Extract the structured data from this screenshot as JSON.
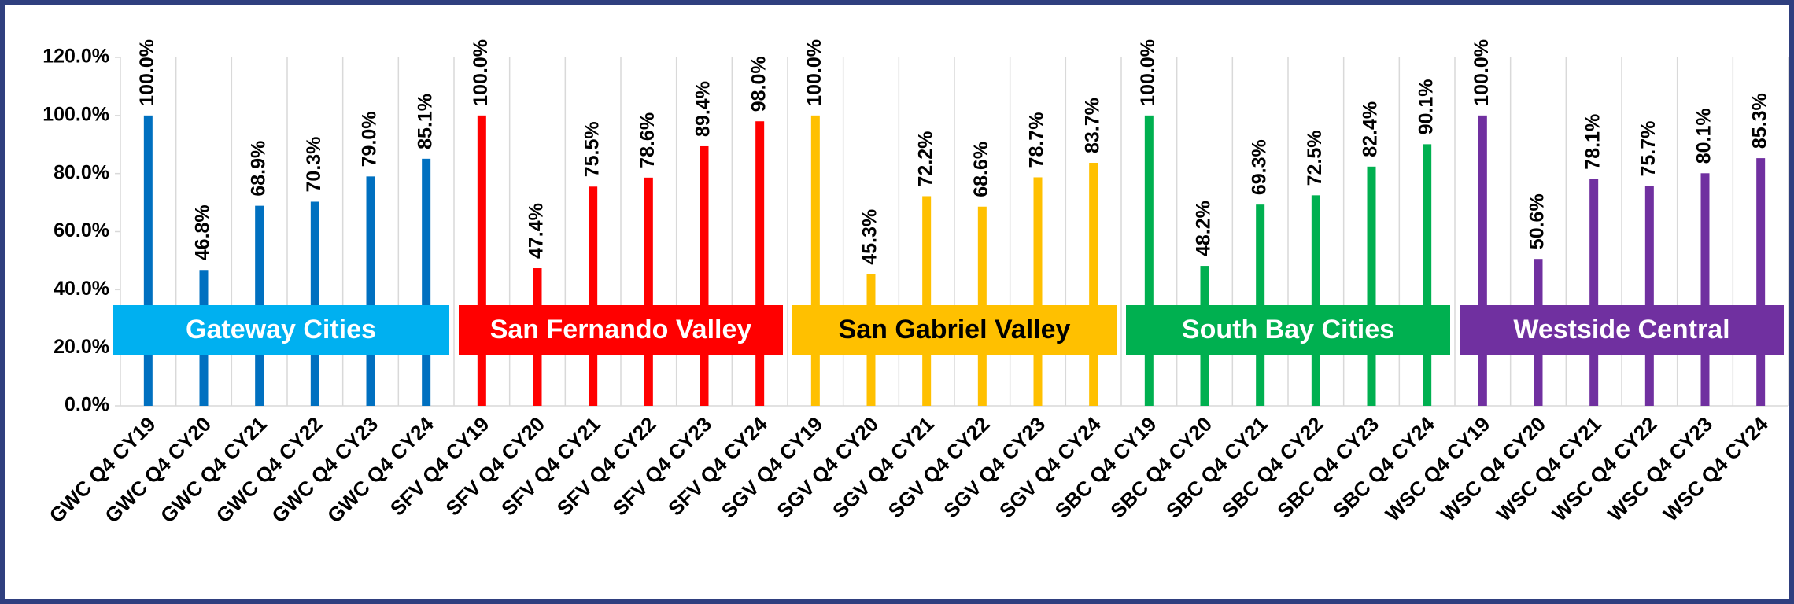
{
  "chart_data": {
    "type": "bar",
    "categories": [
      "GWC Q4 CY19",
      "GWC Q4 CY20",
      "GWC Q4 CY21",
      "GWC Q4 CY22",
      "GWC Q4 CY23",
      "GWC Q4 CY24",
      "SFV Q4 CY19",
      "SFV Q4 CY20",
      "SFV Q4 CY21",
      "SFV Q4 CY22",
      "SFV Q4 CY23",
      "SFV Q4 CY24",
      "SGV Q4 CY19",
      "SGV Q4 CY20",
      "SGV Q4 CY21",
      "SGV Q4 CY22",
      "SGV Q4 CY23",
      "SGV Q4 CY24",
      "SBC Q4 CY19",
      "SBC Q4 CY20",
      "SBC Q4 CY21",
      "SBC Q4 CY22",
      "SBC Q4 CY23",
      "SBC Q4 CY24",
      "WSC Q4 CY19",
      "WSC Q4 CY20",
      "WSC Q4 CY21",
      "WSC Q4 CY22",
      "WSC Q4 CY23",
      "WSC Q4 CY24"
    ],
    "series": [
      {
        "name": "Gateway Cities",
        "color": "#0070c0",
        "box_color": "#00b0f0",
        "text_color": "#ffffff",
        "values": [
          100,
          46.8,
          68.9,
          70.3,
          79.0,
          85.1,
          null,
          null,
          null,
          null,
          null,
          null,
          null,
          null,
          null,
          null,
          null,
          null,
          null,
          null,
          null,
          null,
          null,
          null,
          null,
          null,
          null,
          null,
          null,
          null
        ],
        "value_labels": [
          "100.0%",
          "46.8%",
          "68.9%",
          "70.3%",
          "79.0%",
          "85.1%",
          null,
          null,
          null,
          null,
          null,
          null,
          null,
          null,
          null,
          null,
          null,
          null,
          null,
          null,
          null,
          null,
          null,
          null,
          null,
          null,
          null,
          null,
          null,
          null
        ]
      },
      {
        "name": "San Fernando Valley",
        "color": "#ff0000",
        "box_color": "#ff0000",
        "text_color": "#ffffff",
        "values": [
          null,
          null,
          null,
          null,
          null,
          null,
          100,
          47.4,
          75.5,
          78.6,
          89.4,
          98.0,
          null,
          null,
          null,
          null,
          null,
          null,
          null,
          null,
          null,
          null,
          null,
          null,
          null,
          null,
          null,
          null,
          null,
          null
        ],
        "value_labels": [
          null,
          null,
          null,
          null,
          null,
          null,
          "100.0%",
          "47.4%",
          "75.5%",
          "78.6%",
          "89.4%",
          "98.0%",
          null,
          null,
          null,
          null,
          null,
          null,
          null,
          null,
          null,
          null,
          null,
          null,
          null,
          null,
          null,
          null,
          null,
          null
        ]
      },
      {
        "name": "San Gabriel Valley",
        "color": "#ffc000",
        "box_color": "#ffc000",
        "text_color": "#000000",
        "values": [
          null,
          null,
          null,
          null,
          null,
          null,
          null,
          null,
          null,
          null,
          null,
          null,
          100,
          45.3,
          72.2,
          68.6,
          78.7,
          83.7,
          null,
          null,
          null,
          null,
          null,
          null,
          null,
          null,
          null,
          null,
          null,
          null
        ],
        "value_labels": [
          null,
          null,
          null,
          null,
          null,
          null,
          null,
          null,
          null,
          null,
          null,
          null,
          "100.0%",
          "45.3%",
          "72.2%",
          "68.6%",
          "78.7%",
          "83.7%",
          null,
          null,
          null,
          null,
          null,
          null,
          null,
          null,
          null,
          null,
          null,
          null
        ]
      },
      {
        "name": "South Bay Cities",
        "color": "#00b050",
        "box_color": "#00b050",
        "text_color": "#ffffff",
        "values": [
          null,
          null,
          null,
          null,
          null,
          null,
          null,
          null,
          null,
          null,
          null,
          null,
          null,
          null,
          null,
          null,
          null,
          null,
          100,
          48.2,
          69.3,
          72.5,
          82.4,
          90.1,
          null,
          null,
          null,
          null,
          null,
          null
        ],
        "value_labels": [
          null,
          null,
          null,
          null,
          null,
          null,
          null,
          null,
          null,
          null,
          null,
          null,
          null,
          null,
          null,
          null,
          null,
          null,
          "100.0%",
          "48.2%",
          "69.3%",
          "72.5%",
          "82.4%",
          "90.1%",
          null,
          null,
          null,
          null,
          null,
          null
        ]
      },
      {
        "name": "Westside Central",
        "color": "#7030a0",
        "box_color": "#7030a0",
        "text_color": "#ffffff",
        "values": [
          null,
          null,
          null,
          null,
          null,
          null,
          null,
          null,
          null,
          null,
          null,
          null,
          null,
          null,
          null,
          null,
          null,
          null,
          null,
          null,
          null,
          null,
          null,
          null,
          100,
          50.6,
          78.1,
          75.7,
          80.1,
          85.3
        ],
        "value_labels": [
          null,
          null,
          null,
          null,
          null,
          null,
          null,
          null,
          null,
          null,
          null,
          null,
          null,
          null,
          null,
          null,
          null,
          null,
          null,
          null,
          null,
          null,
          null,
          null,
          "100.0%",
          "50.6%",
          "78.1%",
          "75.7%",
          "80.1%",
          "85.3%"
        ]
      }
    ],
    "ylim": [
      0,
      120
    ],
    "yticks": [
      {
        "value": 0,
        "label": "0.0%"
      },
      {
        "value": 20,
        "label": "20.0%"
      },
      {
        "value": 40,
        "label": "40.0%"
      },
      {
        "value": 60,
        "label": "60.0%"
      },
      {
        "value": 80,
        "label": "80.0%"
      },
      {
        "value": 100,
        "label": "100.0%"
      },
      {
        "value": 120,
        "label": "120.0%"
      }
    ],
    "grid": true
  }
}
